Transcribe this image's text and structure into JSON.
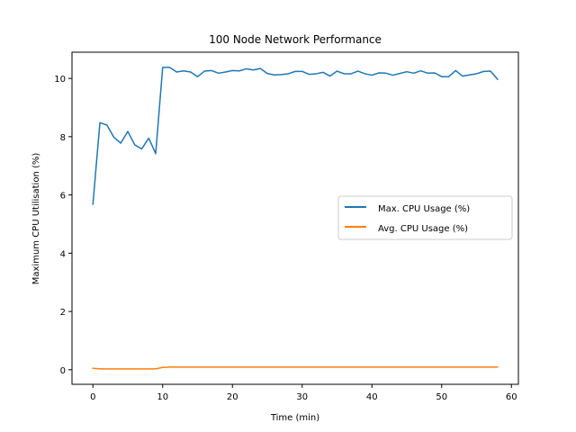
{
  "chart_data": {
    "type": "line",
    "title": "100 Node Network Performance",
    "xlabel": "Time (min)",
    "ylabel": "Maximum CPU Utilisation (%)",
    "xlim": [
      -3,
      61
    ],
    "ylim": [
      -0.5,
      10.9
    ],
    "xticks": [
      0,
      10,
      20,
      30,
      40,
      50,
      60
    ],
    "yticks": [
      0,
      2,
      4,
      6,
      8,
      10
    ],
    "grid": false,
    "legend_position": "center-right",
    "series": [
      {
        "name": "Max. CPU Usage (%)",
        "color": "#1f77b4",
        "x": [
          0,
          1,
          2,
          3,
          4,
          5,
          6,
          7,
          8,
          9,
          10,
          11,
          12,
          13,
          14,
          15,
          16,
          17,
          18,
          19,
          20,
          21,
          22,
          23,
          24,
          25,
          26,
          27,
          28,
          29,
          30,
          31,
          32,
          33,
          34,
          35,
          36,
          37,
          38,
          39,
          40,
          41,
          42,
          43,
          44,
          45,
          46,
          47,
          48,
          49,
          50,
          51,
          52,
          53,
          54,
          55,
          56,
          57,
          58
        ],
        "values": [
          5.68,
          8.48,
          8.4,
          7.98,
          7.78,
          8.18,
          7.72,
          7.58,
          7.95,
          7.42,
          10.38,
          10.38,
          10.22,
          10.26,
          10.22,
          10.06,
          10.25,
          10.27,
          10.18,
          10.22,
          10.27,
          10.26,
          10.33,
          10.29,
          10.34,
          10.17,
          10.12,
          10.13,
          10.16,
          10.24,
          10.24,
          10.14,
          10.16,
          10.21,
          10.08,
          10.25,
          10.16,
          10.16,
          10.25,
          10.16,
          10.11,
          10.19,
          10.18,
          10.11,
          10.17,
          10.23,
          10.18,
          10.26,
          10.18,
          10.19,
          10.06,
          10.06,
          10.27,
          10.08,
          10.12,
          10.16,
          10.24,
          10.25,
          9.97
        ]
      },
      {
        "name": "Avg. CPU Usage (%)",
        "color": "#ff7f0e",
        "x": [
          0,
          1,
          2,
          3,
          4,
          5,
          6,
          7,
          8,
          9,
          10,
          11,
          12,
          13,
          14,
          15,
          16,
          17,
          18,
          19,
          20,
          21,
          22,
          23,
          24,
          25,
          26,
          27,
          28,
          29,
          30,
          31,
          32,
          33,
          34,
          35,
          36,
          37,
          38,
          39,
          40,
          41,
          42,
          43,
          44,
          45,
          46,
          47,
          48,
          49,
          50,
          51,
          52,
          53,
          54,
          55,
          56,
          57,
          58
        ],
        "values": [
          0.05,
          0.03,
          0.03,
          0.03,
          0.03,
          0.03,
          0.03,
          0.03,
          0.03,
          0.03,
          0.08,
          0.09,
          0.09,
          0.09,
          0.09,
          0.09,
          0.09,
          0.09,
          0.09,
          0.09,
          0.09,
          0.09,
          0.09,
          0.09,
          0.09,
          0.09,
          0.09,
          0.09,
          0.09,
          0.09,
          0.09,
          0.09,
          0.09,
          0.09,
          0.09,
          0.09,
          0.09,
          0.09,
          0.09,
          0.09,
          0.09,
          0.09,
          0.09,
          0.09,
          0.09,
          0.09,
          0.09,
          0.09,
          0.09,
          0.09,
          0.09,
          0.09,
          0.09,
          0.09,
          0.09,
          0.09,
          0.09,
          0.09,
          0.09
        ]
      }
    ]
  }
}
